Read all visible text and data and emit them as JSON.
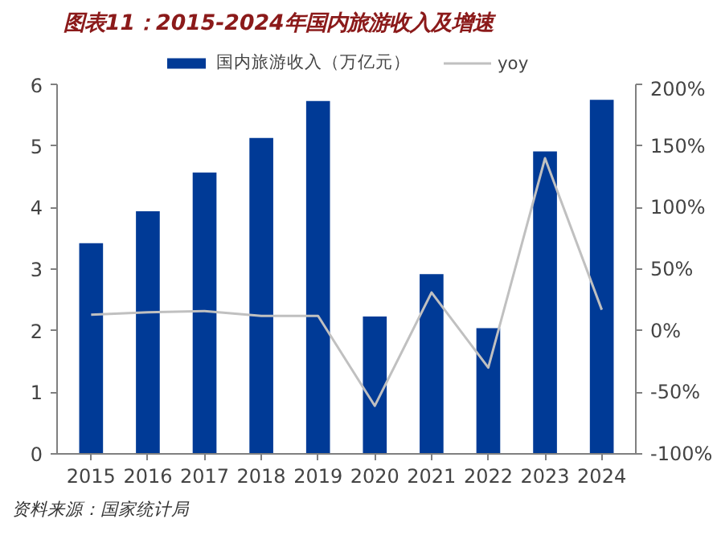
{
  "chart_data": {
    "type": "bar",
    "title": "图表11：2015-2024年国内旅游收入及增速",
    "categories": [
      "2015",
      "2016",
      "2017",
      "2018",
      "2019",
      "2020",
      "2021",
      "2022",
      "2023",
      "2024"
    ],
    "series": [
      {
        "name": "国内旅游收入（万亿元）",
        "type": "bar",
        "color": "#003a96",
        "values": [
          3.42,
          3.94,
          4.57,
          5.13,
          5.73,
          2.23,
          2.92,
          2.04,
          4.91,
          5.75
        ]
      },
      {
        "name": "yoy",
        "type": "line",
        "axis": "y2",
        "color": "#c0c0c0",
        "values": [
          13,
          15,
          16,
          12,
          12,
          -61,
          31,
          -30,
          140,
          17
        ]
      }
    ],
    "ylim": [
      0,
      6
    ],
    "yticks": [
      0,
      1,
      2,
      3,
      4,
      5,
      6
    ],
    "y2lim": [
      -100,
      200
    ],
    "y2ticks": [
      {
        "value": -100,
        "label": "-100%"
      },
      {
        "value": -50,
        "label": "-50%"
      },
      {
        "value": 0,
        "label": "0%"
      },
      {
        "value": 50,
        "label": "50%"
      },
      {
        "value": 100,
        "label": "100%"
      },
      {
        "value": 150,
        "label": "150%"
      },
      {
        "value": 200,
        "label": "200%"
      }
    ],
    "grid": false,
    "legend": "top",
    "annotations": [
      "资料来源：国家统计局"
    ]
  }
}
